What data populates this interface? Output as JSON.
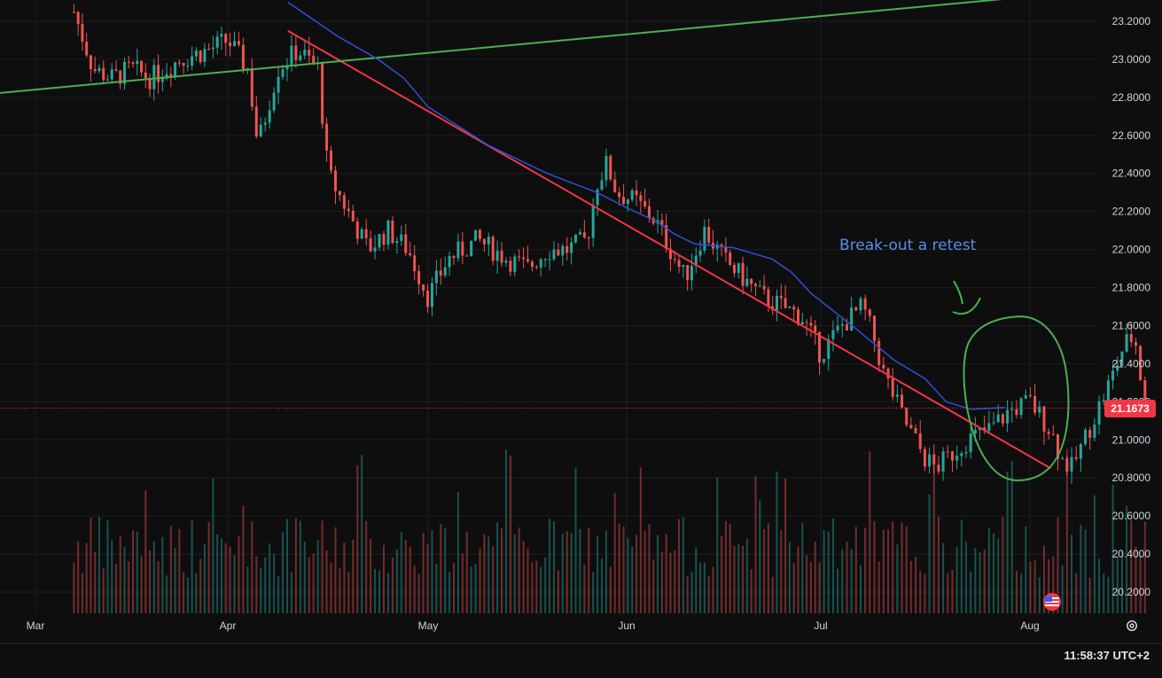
{
  "chart_data": {
    "type": "candlestick",
    "y_axis": {
      "ticks": [
        "23.2000",
        "23.0000",
        "22.8000",
        "22.6000",
        "22.4000",
        "22.2000",
        "22.0000",
        "21.8000",
        "21.6000",
        "21.4000",
        "21.2000",
        "21.0000",
        "20.8000",
        "20.6000",
        "20.4000",
        "20.2000"
      ],
      "ylim": [
        20.1,
        23.3
      ],
      "position": "right"
    },
    "x_axis": {
      "ticks": [
        "Mar",
        "Apr",
        "May",
        "Jun",
        "Jul",
        "Aug"
      ]
    },
    "last_price": {
      "label": "21.1673",
      "value": 21.1673,
      "color": "#f23645"
    },
    "trendlines": [
      {
        "name": "descending-trendline",
        "color": "#f23645",
        "from": {
          "x": 13.3,
          "y": 23.15
        },
        "to": {
          "x": 17.1,
          "y": 20.85
        }
      },
      {
        "name": "ascending-support-line",
        "color": "#4caf50",
        "from": {
          "x": 12.1,
          "y": 22.85
        },
        "to": {
          "x": 17.0,
          "y": 23.33
        }
      }
    ],
    "moving_average": {
      "color": "#2f4fd8",
      "points": [
        [
          13.3,
          23.3
        ],
        [
          13.55,
          23.12
        ],
        [
          13.75,
          23.0
        ],
        [
          13.88,
          22.9
        ],
        [
          14.0,
          22.75
        ],
        [
          14.3,
          22.55
        ],
        [
          14.6,
          22.4
        ],
        [
          14.85,
          22.3
        ],
        [
          15.0,
          22.22
        ],
        [
          15.15,
          22.15
        ],
        [
          15.25,
          22.08
        ],
        [
          15.35,
          22.03
        ],
        [
          15.55,
          22.01
        ],
        [
          15.75,
          21.95
        ],
        [
          15.85,
          21.88
        ],
        [
          15.95,
          21.77
        ],
        [
          16.15,
          21.6
        ],
        [
          16.35,
          21.42
        ],
        [
          16.5,
          21.32
        ],
        [
          16.6,
          21.2
        ],
        [
          16.72,
          21.16
        ],
        [
          16.88,
          21.17
        ]
      ]
    },
    "candles_ohlc_summary": [
      [
        12.2,
        23.25
      ],
      [
        12.3,
        22.95
      ],
      [
        12.4,
        22.9
      ],
      [
        12.5,
        22.95
      ],
      [
        12.6,
        22.9
      ],
      [
        12.75,
        23.0
      ],
      [
        12.9,
        23.05
      ],
      [
        13.0,
        23.1
      ],
      [
        13.1,
        22.95
      ],
      [
        13.15,
        22.55
      ],
      [
        13.25,
        22.95
      ],
      [
        13.35,
        23.05
      ],
      [
        13.45,
        22.95
      ],
      [
        13.5,
        22.4
      ],
      [
        13.6,
        22.2
      ],
      [
        13.7,
        22.0
      ],
      [
        13.8,
        22.1
      ],
      [
        13.9,
        22.0
      ],
      [
        14.0,
        21.75
      ],
      [
        14.1,
        21.95
      ],
      [
        14.25,
        22.05
      ],
      [
        14.4,
        21.95
      ],
      [
        14.5,
        21.9
      ],
      [
        14.6,
        22.0
      ],
      [
        14.7,
        22.0
      ],
      [
        14.8,
        22.05
      ],
      [
        14.85,
        22.35
      ],
      [
        14.9,
        22.45
      ],
      [
        14.95,
        22.3
      ],
      [
        15.05,
        22.25
      ],
      [
        15.15,
        22.15
      ],
      [
        15.25,
        21.95
      ],
      [
        15.3,
        21.85
      ],
      [
        15.4,
        22.1
      ],
      [
        15.5,
        21.95
      ],
      [
        15.6,
        21.85
      ],
      [
        15.7,
        21.75
      ],
      [
        15.8,
        21.7
      ],
      [
        15.9,
        21.65
      ],
      [
        16.0,
        21.45
      ],
      [
        16.1,
        21.6
      ],
      [
        16.2,
        21.7
      ],
      [
        16.25,
        21.55
      ],
      [
        16.3,
        21.35
      ],
      [
        16.4,
        21.1
      ],
      [
        16.5,
        20.9
      ],
      [
        16.55,
        20.85
      ],
      [
        16.6,
        20.9
      ],
      [
        16.7,
        21.0
      ],
      [
        16.8,
        21.05
      ],
      [
        16.9,
        21.15
      ],
      [
        17.0,
        21.2
      ],
      [
        17.1,
        21.05
      ],
      [
        17.15,
        20.9
      ],
      [
        17.2,
        20.85
      ],
      [
        17.3,
        21.1
      ],
      [
        17.4,
        21.35
      ],
      [
        17.45,
        21.5
      ],
      [
        17.5,
        21.55
      ],
      [
        17.55,
        21.17
      ]
    ],
    "annotations": {
      "text": "Break-out a retest",
      "shape": "ellipse",
      "color": "#4caf50",
      "text_color": "#5b8ce6"
    }
  },
  "ui": {
    "clock": "11:58:37 UTC+2",
    "settings_icon": "gear-icon",
    "flag_icon": "us-flag-icon"
  }
}
